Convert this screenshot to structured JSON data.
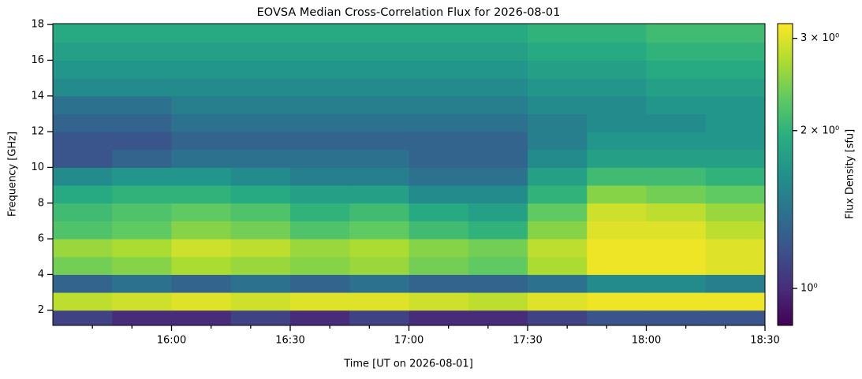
{
  "chart_data": {
    "type": "heatmap",
    "title": "EOVSA Median Cross-Correlation Flux for 2026-08-01",
    "x_label": "Time [UT on 2026-08-01]",
    "y_label": "Frequency [GHz]",
    "colorbar_label": "Flux Density [sfu]",
    "colormap": "viridis",
    "color_scale": "log",
    "x_edges": [
      930,
      945,
      960,
      975,
      990,
      1005,
      1020,
      1035,
      1050,
      1065,
      1080,
      1095,
      1110
    ],
    "y_edges": [
      1.15,
      2,
      3,
      4,
      5,
      6,
      7,
      8,
      9,
      10,
      11,
      12,
      13,
      14,
      15,
      16,
      17,
      18.05
    ],
    "values": [
      [
        1.1,
        1.0,
        1.0,
        1.1,
        1.0,
        1.1,
        1.0,
        1.0,
        1.1,
        1.2,
        1.2,
        1.2
      ],
      [
        2.8,
        2.9,
        3.0,
        2.9,
        3.0,
        3.0,
        2.9,
        2.8,
        3.0,
        3.1,
        3.1,
        3.1
      ],
      [
        1.3,
        1.4,
        1.3,
        1.4,
        1.3,
        1.4,
        1.3,
        1.3,
        1.4,
        1.6,
        1.6,
        1.5
      ],
      [
        2.4,
        2.5,
        2.7,
        2.6,
        2.5,
        2.6,
        2.4,
        2.3,
        2.7,
        3.1,
        3.1,
        3.0
      ],
      [
        2.6,
        2.7,
        2.9,
        2.8,
        2.6,
        2.7,
        2.5,
        2.4,
        2.8,
        3.1,
        3.1,
        3.0
      ],
      [
        2.2,
        2.3,
        2.5,
        2.4,
        2.2,
        2.3,
        2.1,
        2.0,
        2.5,
        3.0,
        3.0,
        2.8
      ],
      [
        2.1,
        2.2,
        2.3,
        2.2,
        2.0,
        2.1,
        1.9,
        1.8,
        2.3,
        2.9,
        2.8,
        2.6
      ],
      [
        1.9,
        2.0,
        2.0,
        1.9,
        1.8,
        1.8,
        1.6,
        1.6,
        2.0,
        2.5,
        2.4,
        2.3
      ],
      [
        1.6,
        1.7,
        1.7,
        1.6,
        1.5,
        1.5,
        1.4,
        1.4,
        1.8,
        2.1,
        2.1,
        2.0
      ],
      [
        1.2,
        1.3,
        1.4,
        1.4,
        1.4,
        1.4,
        1.3,
        1.3,
        1.6,
        1.8,
        1.8,
        1.8
      ],
      [
        1.2,
        1.2,
        1.3,
        1.3,
        1.3,
        1.3,
        1.3,
        1.3,
        1.5,
        1.7,
        1.7,
        1.7
      ],
      [
        1.3,
        1.3,
        1.4,
        1.4,
        1.4,
        1.4,
        1.4,
        1.4,
        1.5,
        1.6,
        1.6,
        1.7
      ],
      [
        1.4,
        1.4,
        1.5,
        1.5,
        1.5,
        1.5,
        1.5,
        1.5,
        1.6,
        1.6,
        1.7,
        1.7
      ],
      [
        1.6,
        1.6,
        1.6,
        1.6,
        1.6,
        1.6,
        1.6,
        1.6,
        1.7,
        1.7,
        1.8,
        1.8
      ],
      [
        1.7,
        1.7,
        1.7,
        1.7,
        1.7,
        1.7,
        1.7,
        1.7,
        1.8,
        1.8,
        1.9,
        1.9
      ],
      [
        1.8,
        1.8,
        1.8,
        1.8,
        1.8,
        1.8,
        1.8,
        1.8,
        1.9,
        1.9,
        2.0,
        2.0
      ],
      [
        1.9,
        1.9,
        1.9,
        1.9,
        1.9,
        1.9,
        1.9,
        1.9,
        2.0,
        2.0,
        2.1,
        2.1
      ]
    ],
    "xlim": [
      930,
      1110
    ],
    "xticks": [
      {
        "value": 960,
        "label": "16:00"
      },
      {
        "value": 990,
        "label": "16:30"
      },
      {
        "value": 1020,
        "label": "17:00"
      },
      {
        "value": 1050,
        "label": "17:30"
      },
      {
        "value": 1080,
        "label": "18:00"
      },
      {
        "value": 1110,
        "label": "18:30"
      }
    ],
    "xminorticks": [
      940,
      950,
      970,
      980,
      1000,
      1010,
      1030,
      1040,
      1060,
      1070,
      1090,
      1100
    ],
    "ylim": [
      1.15,
      18.05
    ],
    "yticks": [
      2,
      4,
      6,
      8,
      10,
      12,
      14,
      16,
      18
    ],
    "clim": [
      0.85,
      3.2
    ],
    "cticks": [
      {
        "value": 1,
        "label": "10⁰"
      },
      {
        "value": 2,
        "label": "2 × 10⁰"
      },
      {
        "value": 3,
        "label": "3 × 10⁰"
      }
    ]
  }
}
